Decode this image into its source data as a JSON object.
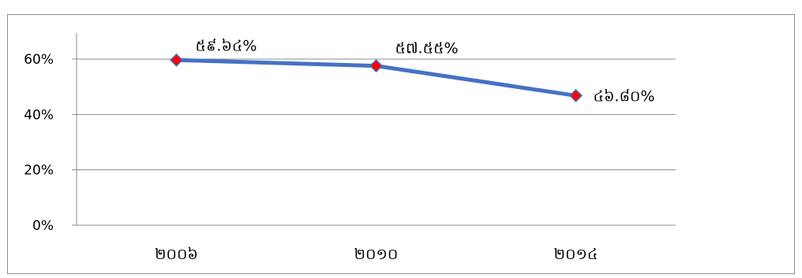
{
  "chart_data": {
    "type": "line",
    "categories": [
      "២០០៦",
      "២០១០",
      "២០១៤"
    ],
    "series": [
      {
        "values": [
          59.64,
          57.55,
          46.8
        ],
        "data_labels": [
          "៥៩.៦៤%",
          "៥៧.៥៥%",
          "៤៦.៨០%"
        ],
        "color": "#4472C4",
        "marker_color": "#FF0000"
      }
    ],
    "y_ticks": [
      0,
      20,
      40,
      60
    ],
    "y_tick_labels": [
      "0%",
      "20%",
      "40%",
      "60%"
    ],
    "ylim": [
      0,
      70
    ],
    "grid": true,
    "gridline_color": "#8c8c8c"
  }
}
